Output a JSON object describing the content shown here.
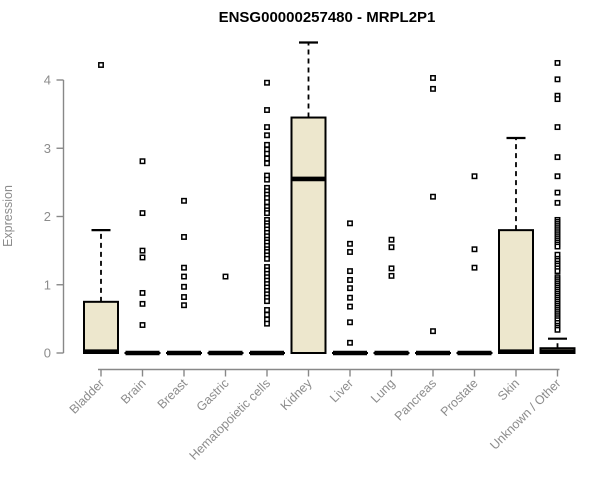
{
  "title": "ENSG00000257480 - MRPL2P1",
  "chart_data": {
    "type": "boxplot",
    "title": "ENSG00000257480 - MRPL2P1",
    "xlabel": "",
    "ylabel": "Expression",
    "yticks": [
      0,
      1,
      2,
      3,
      4
    ],
    "ylim": [
      0,
      4.6
    ],
    "grid": false,
    "legend": "none",
    "categories": [
      "Bladder",
      "Brain",
      "Breast",
      "Gastric",
      "Hematopoietic cells",
      "Kidney",
      "Liver",
      "Lung",
      "Pancreas",
      "Prostate",
      "Skin",
      "Unknown / Other"
    ],
    "series": [
      {
        "label": "Bladder",
        "q1": 0,
        "median": 0.02,
        "q3": 0.75,
        "whisker_low": 0,
        "whisker_high": 1.8,
        "outliers": [
          4.22
        ]
      },
      {
        "label": "Brain",
        "q1": 0,
        "median": 0,
        "q3": 0,
        "whisker_low": 0,
        "whisker_high": 0,
        "outliers": [
          2.81,
          2.05,
          1.5,
          1.4,
          0.88,
          0.72,
          0.41
        ]
      },
      {
        "label": "Breast",
        "q1": 0,
        "median": 0,
        "q3": 0,
        "whisker_low": 0,
        "whisker_high": 0,
        "outliers": [
          2.23,
          1.7,
          1.25,
          1.12,
          0.97,
          0.82,
          0.7
        ]
      },
      {
        "label": "Gastric",
        "q1": 0,
        "median": 0,
        "q3": 0,
        "whisker_low": 0,
        "whisker_high": 0,
        "outliers": [
          1.12
        ]
      },
      {
        "label": "Hematopoietic cells",
        "q1": 0,
        "median": 0,
        "q3": 0,
        "whisker_low": 0,
        "whisker_high": 0,
        "outliers": [
          3.96,
          3.56,
          3.31,
          3.19,
          3.05,
          2.98,
          2.92,
          2.85,
          2.78,
          2.6,
          2.54,
          2.42,
          2.37,
          2.32,
          2.27,
          2.21,
          2.14,
          2.09,
          2.05,
          1.95,
          1.9,
          1.86,
          1.81,
          1.76,
          1.71,
          1.66,
          1.62,
          1.57,
          1.52,
          1.48,
          1.43,
          1.38,
          1.26,
          1.21,
          1.16,
          1.11,
          1.06,
          1.01,
          0.96,
          0.91,
          0.86,
          0.81,
          0.76,
          0.63,
          0.56,
          0.49,
          0.43
        ]
      },
      {
        "label": "Kidney",
        "q1": 0,
        "median": 2.55,
        "q3": 3.45,
        "whisker_low": 0,
        "whisker_high": 4.55,
        "outliers": []
      },
      {
        "label": "Liver",
        "q1": 0,
        "median": 0,
        "q3": 0,
        "whisker_low": 0,
        "whisker_high": 0,
        "outliers": [
          1.9,
          1.6,
          1.48,
          1.2,
          1.07,
          0.95,
          0.81,
          0.68,
          0.45,
          0.15
        ]
      },
      {
        "label": "Lung",
        "q1": 0,
        "median": 0,
        "q3": 0,
        "whisker_low": 0,
        "whisker_high": 0,
        "outliers": [
          1.66,
          1.55,
          1.24,
          1.13
        ]
      },
      {
        "label": "Pancreas",
        "q1": 0,
        "median": 0,
        "q3": 0,
        "whisker_low": 0,
        "whisker_high": 0,
        "outliers": [
          4.03,
          3.87,
          2.29,
          0.32
        ]
      },
      {
        "label": "Prostate",
        "q1": 0,
        "median": 0,
        "q3": 0,
        "whisker_low": 0,
        "whisker_high": 0,
        "outliers": [
          2.59,
          1.52,
          1.25
        ]
      },
      {
        "label": "Skin",
        "q1": 0,
        "median": 0.02,
        "q3": 1.8,
        "whisker_low": 0,
        "whisker_high": 3.15,
        "outliers": []
      },
      {
        "label": "Unknown / Other",
        "q1": 0,
        "median": 0.02,
        "q3": 0.07,
        "whisker_low": 0,
        "whisker_high": 0.21,
        "outliers": [
          4.25,
          4.01,
          3.77,
          3.72,
          3.31,
          2.87,
          2.59,
          2.35,
          2.2,
          1.95,
          1.92,
          1.89,
          1.86,
          1.83,
          1.8,
          1.77,
          1.74,
          1.71,
          1.68,
          1.65,
          1.62,
          1.59,
          1.56,
          1.44,
          1.38,
          1.35,
          1.31,
          1.28,
          1.24,
          1.2,
          1.11,
          1.08,
          1.05,
          1.02,
          0.99,
          0.96,
          0.93,
          0.9,
          0.87,
          0.84,
          0.81,
          0.78,
          0.75,
          0.72,
          0.69,
          0.66,
          0.63,
          0.6,
          0.57,
          0.54,
          0.51,
          0.48,
          0.44,
          0.4,
          0.37,
          0.34
        ]
      }
    ],
    "colors": {
      "box_fill": "#EDE7CD",
      "box_stroke": "#000000",
      "median": "#000000",
      "whisker": "#000000",
      "outlier_stroke": "#000000",
      "outlier_fill": "#FFFFFF",
      "axis": "#888888",
      "tick_label": "#8C8C8C",
      "title": "#000000",
      "background": "#FFFFFF"
    }
  }
}
